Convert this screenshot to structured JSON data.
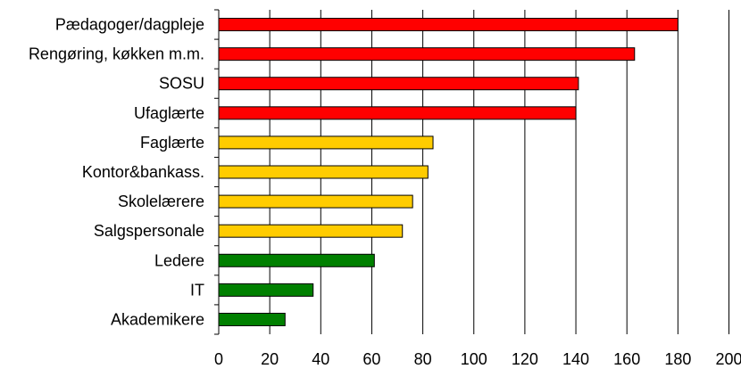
{
  "chart_data": {
    "type": "bar",
    "orientation": "horizontal",
    "title": "",
    "xlabel": "",
    "ylabel": "",
    "xlim": [
      0,
      200
    ],
    "x_ticks": [
      "0",
      "20",
      "40",
      "60",
      "80",
      "100",
      "120",
      "140",
      "160",
      "180",
      "200"
    ],
    "grid": "vertical gridlines",
    "legend": "none",
    "categories": [
      "Pædagoger/dagpleje",
      "Rengøring, køkken m.m.",
      "SOSU",
      "Ufaglærte",
      "Faglærte",
      "Kontor&bankass.",
      "Skolelærere",
      "Salgspersonale",
      "Ledere",
      "IT",
      "Akademikere"
    ],
    "values": [
      180,
      163,
      141,
      140,
      84,
      82,
      76,
      72,
      61,
      37,
      26
    ],
    "bar_colors": [
      "#ff0000",
      "#ff0000",
      "#ff0000",
      "#ff0000",
      "#ffcc00",
      "#ffcc00",
      "#ffcc00",
      "#ffcc00",
      "#008000",
      "#008000",
      "#008000"
    ]
  }
}
